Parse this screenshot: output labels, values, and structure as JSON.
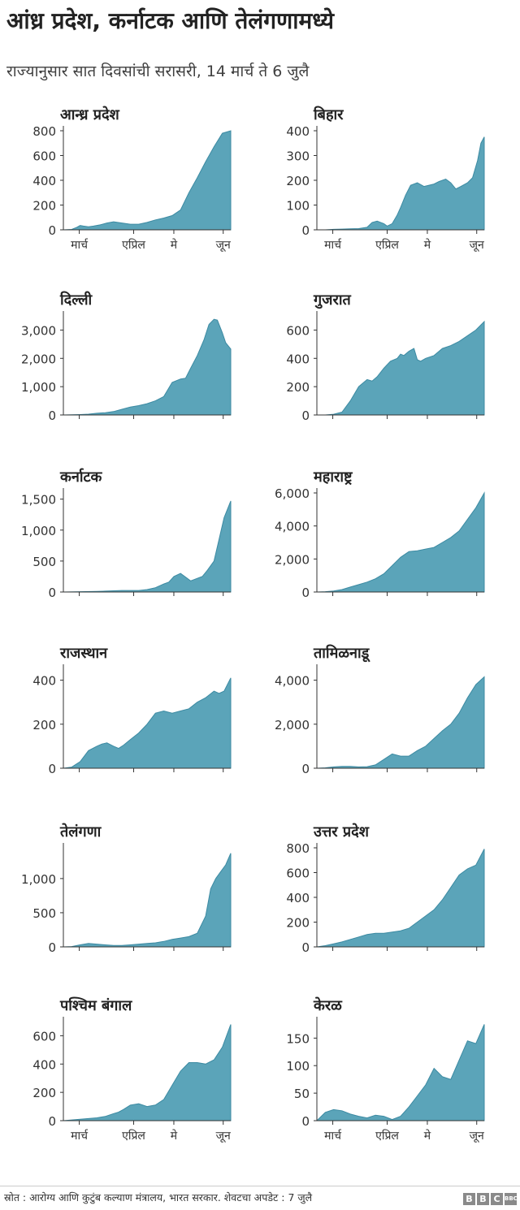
{
  "header": {
    "title": "आंध्र प्रदेश, कर्नाटक आणि तेलंगणामध्ये",
    "subtitle": "राज्यानुसार सात दिवसांची सरासरी, 14 मार्च ते 6 जुलै"
  },
  "footer": {
    "source": "स्रोत : आरोग्य आणि कुटुंब कल्याण मंत्रालय, भारत सरकार. शेवटचा अपडेट : 7 जुलै",
    "logo_letters": [
      "B",
      "B",
      "C"
    ],
    "logo_small": "BBC"
  },
  "colors": {
    "area_fill": "#5ba4b9",
    "area_stroke": "#3c8aa2",
    "axis": "#333333"
  },
  "x_tick_labels": [
    "मार्च",
    "एप्रिल",
    "मे",
    "जून"
  ],
  "chart_data": [
    {
      "type": "area",
      "title": "आन्ध्र प्रदेश",
      "ylim": [
        0,
        800
      ],
      "yticks": [
        0,
        200,
        400,
        600,
        800
      ],
      "ytick_labels": [
        "0",
        "200",
        "400",
        "600",
        "800"
      ],
      "show_x_ticks": true,
      "x": [
        0,
        0.05,
        0.08,
        0.1,
        0.12,
        0.15,
        0.18,
        0.22,
        0.26,
        0.3,
        0.35,
        0.4,
        0.45,
        0.5,
        0.55,
        0.6,
        0.65,
        0.7,
        0.75,
        0.8,
        0.85,
        0.9,
        0.95,
        1
      ],
      "y": [
        0,
        3,
        20,
        35,
        30,
        25,
        30,
        40,
        55,
        65,
        55,
        45,
        45,
        60,
        80,
        95,
        115,
        160,
        300,
        420,
        550,
        670,
        780,
        800
      ]
    },
    {
      "type": "area",
      "title": "बिहार",
      "ylim": [
        0,
        400
      ],
      "yticks": [
        0,
        100,
        200,
        300,
        400
      ],
      "ytick_labels": [
        "0",
        "100",
        "200",
        "300",
        "400"
      ],
      "show_x_ticks": true,
      "x": [
        0,
        0.05,
        0.1,
        0.15,
        0.2,
        0.25,
        0.3,
        0.33,
        0.36,
        0.4,
        0.42,
        0.45,
        0.48,
        0.5,
        0.53,
        0.56,
        0.6,
        0.64,
        0.67,
        0.7,
        0.73,
        0.77,
        0.8,
        0.83,
        0.86,
        0.9,
        0.93,
        0.96,
        0.98,
        1
      ],
      "y": [
        0,
        0,
        2,
        3,
        4,
        5,
        10,
        30,
        35,
        25,
        15,
        25,
        60,
        90,
        140,
        180,
        190,
        175,
        180,
        185,
        195,
        205,
        190,
        165,
        175,
        190,
        210,
        280,
        350,
        375
      ]
    },
    {
      "type": "area",
      "title": "दिल्ली",
      "ylim": [
        0,
        3500
      ],
      "yticks": [
        0,
        1000,
        2000,
        3000
      ],
      "ytick_labels": [
        "0",
        "1,000",
        "2,000",
        "3,000"
      ],
      "show_x_ticks": false,
      "x": [
        0,
        0.05,
        0.1,
        0.15,
        0.2,
        0.25,
        0.3,
        0.35,
        0.4,
        0.45,
        0.5,
        0.55,
        0.6,
        0.65,
        0.7,
        0.73,
        0.76,
        0.8,
        0.84,
        0.87,
        0.9,
        0.92,
        0.95,
        0.97,
        1
      ],
      "y": [
        0,
        5,
        15,
        30,
        60,
        80,
        120,
        200,
        280,
        330,
        400,
        500,
        650,
        1150,
        1270,
        1300,
        1650,
        2100,
        2650,
        3200,
        3380,
        3350,
        2900,
        2550,
        2330
      ]
    },
    {
      "type": "area",
      "title": "गुजरात",
      "ylim": [
        0,
        700
      ],
      "yticks": [
        0,
        200,
        400,
        600
      ],
      "ytick_labels": [
        "0",
        "200",
        "400",
        "600"
      ],
      "show_x_ticks": false,
      "x": [
        0,
        0.05,
        0.1,
        0.15,
        0.2,
        0.25,
        0.3,
        0.33,
        0.36,
        0.4,
        0.44,
        0.48,
        0.5,
        0.52,
        0.55,
        0.58,
        0.6,
        0.62,
        0.65,
        0.7,
        0.75,
        0.8,
        0.85,
        0.9,
        0.95,
        1
      ],
      "y": [
        0,
        0,
        5,
        20,
        100,
        200,
        250,
        240,
        270,
        330,
        380,
        400,
        430,
        420,
        450,
        470,
        390,
        380,
        400,
        420,
        470,
        490,
        520,
        560,
        600,
        660
      ]
    },
    {
      "type": "area",
      "title": "कर्नाटक",
      "ylim": [
        0,
        1600
      ],
      "yticks": [
        0,
        500,
        1000,
        1500
      ],
      "ytick_labels": [
        "0",
        "500",
        "1,000",
        "1,500"
      ],
      "show_x_ticks": false,
      "x": [
        0,
        0.1,
        0.2,
        0.25,
        0.3,
        0.35,
        0.4,
        0.45,
        0.5,
        0.55,
        0.6,
        0.63,
        0.66,
        0.7,
        0.73,
        0.76,
        0.8,
        0.83,
        0.86,
        0.9,
        0.93,
        0.96,
        1
      ],
      "y": [
        0,
        5,
        10,
        15,
        20,
        25,
        25,
        25,
        40,
        70,
        130,
        160,
        250,
        300,
        240,
        180,
        220,
        250,
        350,
        500,
        850,
        1200,
        1470
      ]
    },
    {
      "type": "area",
      "title": "महाराष्ट्र",
      "ylim": [
        0,
        6000
      ],
      "yticks": [
        0,
        2000,
        4000,
        6000
      ],
      "ytick_labels": [
        "0",
        "2,000",
        "4,000",
        "6,000"
      ],
      "show_x_ticks": false,
      "x": [
        0,
        0.05,
        0.1,
        0.15,
        0.2,
        0.25,
        0.3,
        0.35,
        0.4,
        0.45,
        0.5,
        0.55,
        0.6,
        0.65,
        0.7,
        0.75,
        0.8,
        0.85,
        0.9,
        0.95,
        1
      ],
      "y": [
        0,
        20,
        60,
        150,
        300,
        450,
        600,
        800,
        1100,
        1600,
        2100,
        2450,
        2500,
        2600,
        2700,
        3000,
        3300,
        3700,
        4400,
        5100,
        6000
      ]
    },
    {
      "type": "area",
      "title": "राजस्थान",
      "ylim": [
        0,
        450
      ],
      "yticks": [
        0,
        200,
        400
      ],
      "ytick_labels": [
        "0",
        "200",
        "400"
      ],
      "show_x_ticks": false,
      "x": [
        0,
        0.05,
        0.1,
        0.15,
        0.2,
        0.23,
        0.26,
        0.3,
        0.33,
        0.36,
        0.4,
        0.45,
        0.5,
        0.55,
        0.6,
        0.65,
        0.7,
        0.75,
        0.8,
        0.85,
        0.9,
        0.93,
        0.96,
        1
      ],
      "y": [
        0,
        5,
        30,
        80,
        100,
        110,
        115,
        100,
        90,
        105,
        130,
        160,
        200,
        250,
        260,
        250,
        260,
        270,
        300,
        320,
        350,
        340,
        350,
        410
      ]
    },
    {
      "type": "area",
      "title": "तामिळनाडू",
      "ylim": [
        0,
        4500
      ],
      "yticks": [
        0,
        2000,
        4000
      ],
      "ytick_labels": [
        "0",
        "2,000",
        "4,000"
      ],
      "show_x_ticks": false,
      "x": [
        0,
        0.05,
        0.1,
        0.15,
        0.2,
        0.25,
        0.3,
        0.35,
        0.4,
        0.45,
        0.5,
        0.55,
        0.6,
        0.65,
        0.7,
        0.75,
        0.8,
        0.85,
        0.9,
        0.95,
        1
      ],
      "y": [
        0,
        20,
        60,
        80,
        80,
        60,
        70,
        150,
        400,
        650,
        550,
        550,
        800,
        1000,
        1350,
        1700,
        2000,
        2500,
        3200,
        3800,
        4150
      ]
    },
    {
      "type": "area",
      "title": "तेलंगणा",
      "ylim": [
        0,
        1450
      ],
      "yticks": [
        0,
        500,
        1000
      ],
      "ytick_labels": [
        "0",
        "500",
        "1,000"
      ],
      "show_x_ticks": false,
      "x": [
        0,
        0.05,
        0.1,
        0.15,
        0.2,
        0.25,
        0.3,
        0.35,
        0.4,
        0.45,
        0.5,
        0.55,
        0.6,
        0.65,
        0.7,
        0.75,
        0.8,
        0.85,
        0.88,
        0.91,
        0.94,
        0.97,
        1
      ],
      "y": [
        0,
        5,
        30,
        50,
        40,
        30,
        20,
        20,
        30,
        40,
        50,
        60,
        80,
        110,
        130,
        150,
        200,
        450,
        850,
        1000,
        1100,
        1200,
        1370
      ]
    },
    {
      "type": "area",
      "title": "उत्तर प्रदेश",
      "ylim": [
        0,
        800
      ],
      "yticks": [
        0,
        200,
        400,
        600,
        800
      ],
      "ytick_labels": [
        "0",
        "200",
        "400",
        "600",
        "800"
      ],
      "show_x_ticks": false,
      "x": [
        0,
        0.05,
        0.1,
        0.15,
        0.2,
        0.25,
        0.3,
        0.35,
        0.4,
        0.45,
        0.5,
        0.55,
        0.6,
        0.65,
        0.7,
        0.75,
        0.8,
        0.85,
        0.9,
        0.95,
        1
      ],
      "y": [
        0,
        10,
        25,
        40,
        60,
        80,
        100,
        110,
        110,
        120,
        130,
        150,
        200,
        250,
        300,
        380,
        480,
        580,
        630,
        660,
        790
      ]
    },
    {
      "type": "area",
      "title": "पश्चिम बंगाल",
      "ylim": [
        0,
        700
      ],
      "yticks": [
        0,
        200,
        400,
        600
      ],
      "ytick_labels": [
        "0",
        "200",
        "400",
        "600"
      ],
      "show_x_ticks": true,
      "x": [
        0,
        0.05,
        0.1,
        0.15,
        0.2,
        0.25,
        0.3,
        0.33,
        0.36,
        0.4,
        0.45,
        0.5,
        0.55,
        0.6,
        0.65,
        0.7,
        0.75,
        0.8,
        0.85,
        0.9,
        0.95,
        1
      ],
      "y": [
        0,
        5,
        10,
        15,
        20,
        30,
        50,
        60,
        80,
        110,
        120,
        100,
        110,
        150,
        250,
        350,
        410,
        410,
        400,
        430,
        520,
        680
      ]
    },
    {
      "type": "area",
      "title": "केरळ",
      "ylim": [
        0,
        180
      ],
      "yticks": [
        0,
        50,
        100,
        150
      ],
      "ytick_labels": [
        "0",
        "50",
        "100",
        "150"
      ],
      "show_x_ticks": true,
      "x": [
        0,
        0.05,
        0.1,
        0.15,
        0.2,
        0.25,
        0.3,
        0.35,
        0.4,
        0.45,
        0.5,
        0.55,
        0.6,
        0.65,
        0.7,
        0.75,
        0.8,
        0.85,
        0.9,
        0.95,
        1
      ],
      "y": [
        0,
        15,
        20,
        18,
        12,
        8,
        5,
        10,
        8,
        2,
        8,
        25,
        45,
        65,
        95,
        80,
        75,
        110,
        145,
        140,
        175
      ]
    }
  ]
}
